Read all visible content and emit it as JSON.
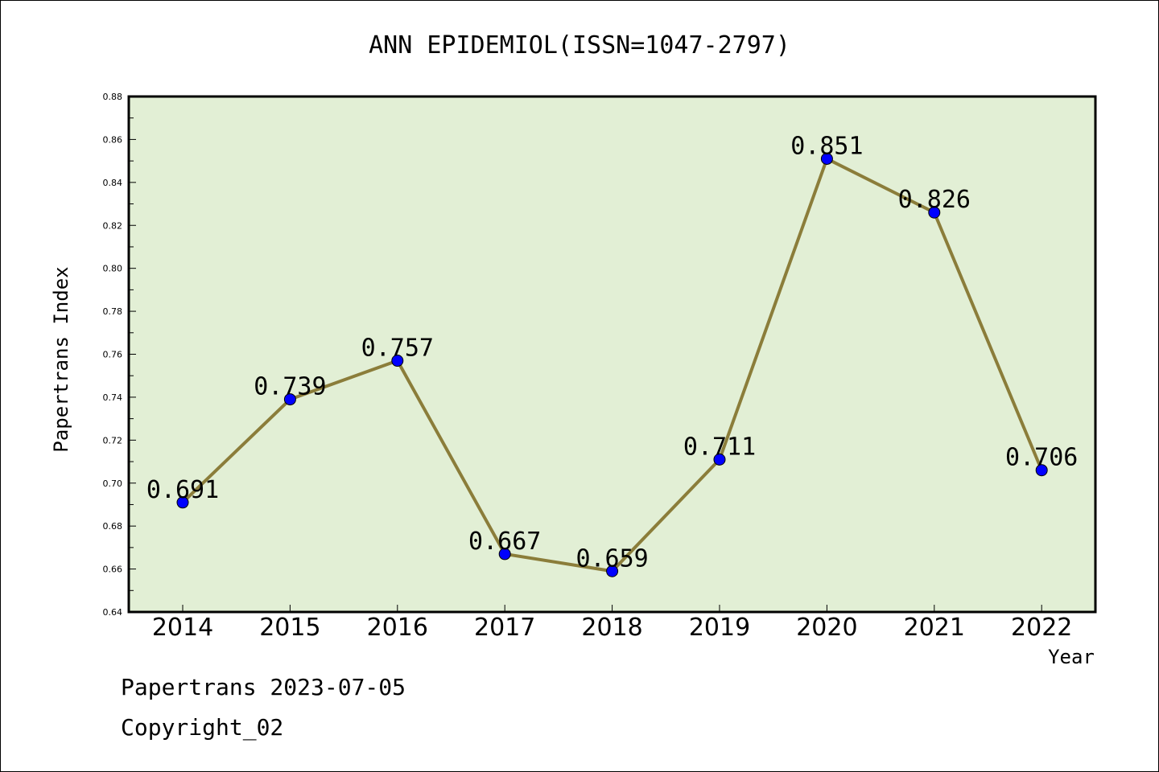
{
  "chart_data": {
    "type": "line",
    "title": "ANN EPIDEMIOL(ISSN=1047-2797)",
    "xlabel": "Year",
    "ylabel": "Papertrans Index",
    "x": [
      "2014",
      "2015",
      "2016",
      "2017",
      "2018",
      "2019",
      "2020",
      "2021",
      "2022"
    ],
    "series": [
      {
        "values": [
          0.691,
          0.739,
          0.757,
          0.667,
          0.659,
          0.711,
          0.851,
          0.826,
          0.706
        ]
      }
    ],
    "data_labels": [
      "0.691",
      "0.739",
      "0.757",
      "0.667",
      "0.659",
      "0.711",
      "0.851",
      "0.826",
      "0.706"
    ],
    "ylim": [
      0.64,
      0.88
    ],
    "yticks": [
      "0.64",
      "0.66",
      "0.68",
      "0.70",
      "0.72",
      "0.74",
      "0.76",
      "0.78",
      "0.80",
      "0.82",
      "0.84",
      "0.86",
      "0.88"
    ],
    "grid": false,
    "plot_background": "#e2efd5",
    "line_color": "#8b7d3a",
    "marker_color": "#0000ff"
  },
  "footer": {
    "line1": "Papertrans 2023-07-05",
    "line2": "Copyright_02"
  }
}
